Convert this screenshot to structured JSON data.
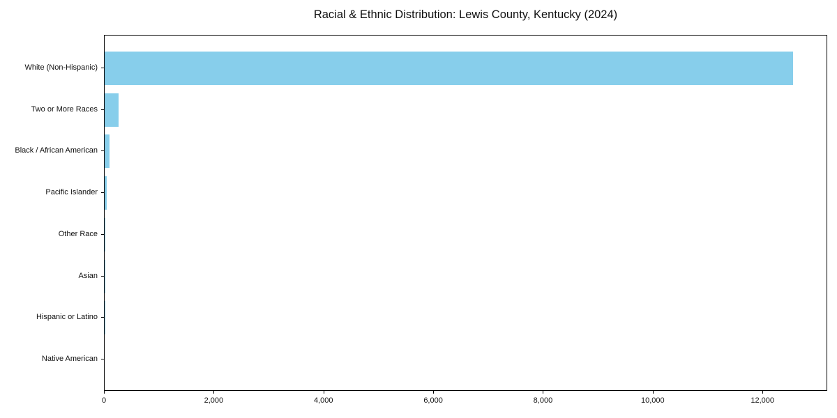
{
  "chart_data": {
    "type": "bar",
    "orientation": "horizontal",
    "title": "Racial & Ethnic Distribution: Lewis County, Kentucky (2024)",
    "categories": [
      "White (Non-Hispanic)",
      "Two or More Races",
      "Black / African American",
      "Pacific Islander",
      "Other Race",
      "Asian",
      "Hispanic or Latino",
      "Native American"
    ],
    "values": [
      12550,
      250,
      90,
      40,
      15,
      10,
      5,
      0
    ],
    "xlabel": "",
    "ylabel": "",
    "xlim": [
      0,
      13180
    ],
    "xticks": {
      "values": [
        0,
        2000,
        4000,
        6000,
        8000,
        10000,
        12000
      ],
      "labels": [
        "0",
        "2,000",
        "4,000",
        "6,000",
        "8,000",
        "10,000",
        "12,000"
      ]
    },
    "grid": false,
    "legend": null,
    "colors": {
      "bar_fill": "#87CEEB",
      "axis": "#000000",
      "text": "#111111",
      "background": "#ffffff"
    }
  }
}
